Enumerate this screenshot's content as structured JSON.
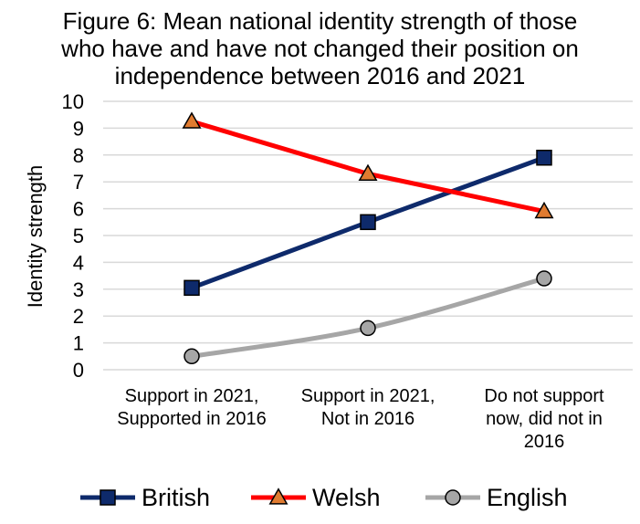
{
  "chart_data": {
    "type": "line",
    "title_lines": [
      "Figure 6: Mean national identity strength of those",
      "who have and have not changed their position on",
      "independence between 2016 and 2021"
    ],
    "ylabel": "Identity strength",
    "xlabel": "",
    "ylim": [
      0,
      10
    ],
    "yticks": [
      0,
      1,
      2,
      3,
      4,
      5,
      6,
      7,
      8,
      9,
      10
    ],
    "grid": true,
    "categories": [
      [
        "Support in 2021,",
        "Supported in 2016"
      ],
      [
        "Support in 2021,",
        "Not in 2016"
      ],
      [
        "Do not support",
        "now, did not in",
        "2016"
      ]
    ],
    "series": [
      {
        "name": "British",
        "values": [
          3.05,
          5.5,
          7.9
        ],
        "color": "#0e2a6b",
        "marker": "square",
        "marker_fill": "#0e2a6b"
      },
      {
        "name": "Welsh",
        "values": [
          9.25,
          7.3,
          5.9
        ],
        "color": "#ff0000",
        "marker": "triangle",
        "marker_fill": "#e07b30"
      },
      {
        "name": "English",
        "values": [
          0.5,
          1.55,
          3.4
        ],
        "color": "#a6a6a6",
        "marker": "circle",
        "marker_fill": "#a6a6a6"
      }
    ],
    "legend_position": "bottom"
  }
}
